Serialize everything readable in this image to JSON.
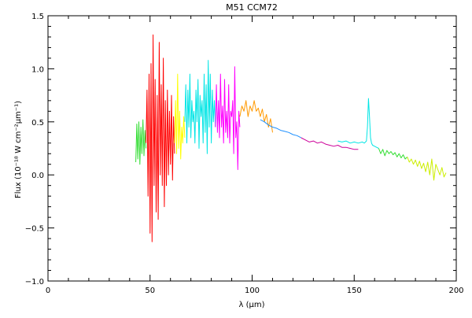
{
  "chart_data": {
    "type": "line",
    "title": "M51 CCM72",
    "xlabel": "λ (μm)",
    "ylabel": "Flux (10⁻¹⁸ W cm⁻²μm⁻¹)",
    "xlim": [
      0,
      200
    ],
    "ylim": [
      -1.0,
      1.5
    ],
    "xticks": [
      0,
      50,
      100,
      150,
      200
    ],
    "yticks": [
      -1.0,
      -0.5,
      0.0,
      0.5,
      1.0,
      1.5
    ],
    "xtick_labels": [
      "0",
      "50",
      "100",
      "150",
      "200"
    ],
    "ytick_labels": [
      "−1.0",
      "−0.5",
      "0.0",
      "0.5",
      "1.0",
      "1.5"
    ],
    "grid": false,
    "series": [
      {
        "color": "#33dd33",
        "x": [
          43,
          43.5,
          44,
          44.5,
          45,
          45.5,
          46,
          46.5,
          47,
          47.5,
          48
        ],
        "y": [
          0.12,
          0.48,
          0.15,
          0.5,
          0.1,
          0.45,
          0.2,
          0.52,
          0.18,
          0.42,
          0.25
        ]
      },
      {
        "color": "#ff0000",
        "x": [
          48,
          48.5,
          49,
          49.5,
          50,
          50.5,
          51,
          51.5,
          52,
          52.5,
          53,
          53.5,
          54,
          54.5,
          55,
          55.5,
          56,
          56.5,
          57,
          57.5,
          58,
          58.5,
          59,
          59.5,
          60,
          60.5,
          61,
          61.5,
          62
        ],
        "y": [
          0.3,
          0.8,
          -0.2,
          0.95,
          -0.55,
          1.05,
          -0.63,
          1.32,
          -0.1,
          0.9,
          -0.35,
          0.75,
          -0.42,
          1.25,
          0.0,
          0.85,
          -0.1,
          1.1,
          -0.3,
          0.7,
          -0.1,
          0.8,
          0.0,
          0.6,
          0.1,
          0.75,
          -0.05,
          0.55,
          0.2
        ]
      },
      {
        "color": "#ffff00",
        "x": [
          62,
          62.5,
          63,
          63.5,
          64,
          64.5,
          65,
          65.5,
          66,
          66.5,
          67
        ],
        "y": [
          0.3,
          0.7,
          0.2,
          0.95,
          0.25,
          0.6,
          0.15,
          0.45,
          0.3,
          0.55,
          0.35
        ]
      },
      {
        "color": "#00e5e5",
        "x": [
          67,
          67.5,
          68,
          68.5,
          69,
          69.5,
          70,
          70.5,
          71,
          71.5,
          72,
          72.5,
          73,
          73.5,
          74,
          74.5,
          75,
          75.5,
          76,
          76.5,
          77,
          77.5,
          78,
          78.5,
          79,
          79.5,
          80,
          80.5,
          81,
          81.5,
          82
        ],
        "y": [
          0.5,
          0.85,
          0.3,
          0.8,
          0.45,
          0.95,
          0.35,
          0.7,
          0.5,
          0.6,
          0.3,
          0.8,
          0.5,
          0.9,
          0.25,
          0.75,
          0.55,
          0.7,
          0.3,
          0.95,
          0.4,
          0.85,
          0.2,
          1.08,
          0.45,
          0.95,
          0.3,
          0.8,
          0.5,
          0.7,
          0.45
        ]
      },
      {
        "color": "#ff00ff",
        "x": [
          82,
          82.5,
          83,
          83.5,
          84,
          84.5,
          85,
          85.5,
          86,
          86.5,
          87,
          87.5,
          88,
          88.5,
          89,
          89.5,
          90,
          90.5,
          91,
          91.5,
          92,
          92.5,
          93,
          93.5,
          94
        ],
        "y": [
          0.45,
          0.85,
          0.4,
          0.7,
          0.35,
          0.95,
          0.45,
          0.65,
          0.3,
          0.9,
          0.4,
          0.6,
          0.35,
          0.85,
          0.3,
          0.6,
          0.55,
          0.7,
          0.2,
          1.02,
          0.35,
          0.5,
          0.05,
          0.6,
          0.45
        ]
      },
      {
        "color": "#ff9900",
        "x": [
          94,
          95,
          96,
          97,
          98,
          99,
          100,
          101,
          102,
          103,
          104,
          105,
          106,
          107,
          108,
          109,
          110
        ],
        "y": [
          0.55,
          0.65,
          0.6,
          0.7,
          0.55,
          0.65,
          0.6,
          0.7,
          0.6,
          0.63,
          0.55,
          0.62,
          0.5,
          0.57,
          0.45,
          0.53,
          0.4
        ]
      },
      {
        "color": "#1e90ff",
        "x": [
          104,
          106,
          108,
          110,
          112,
          114,
          116,
          118,
          120,
          122,
          124
        ],
        "y": [
          0.52,
          0.5,
          0.47,
          0.45,
          0.44,
          0.42,
          0.41,
          0.4,
          0.38,
          0.37,
          0.35
        ]
      },
      {
        "color": "#cc0099",
        "x": [
          124,
          126,
          128,
          130,
          132,
          134,
          136,
          138,
          140,
          142,
          144,
          146,
          148,
          150,
          152
        ],
        "y": [
          0.35,
          0.33,
          0.31,
          0.32,
          0.3,
          0.31,
          0.29,
          0.28,
          0.27,
          0.28,
          0.26,
          0.26,
          0.25,
          0.24,
          0.24
        ]
      },
      {
        "color": "#00e5e5",
        "x": [
          142,
          144,
          146,
          148,
          150,
          152,
          154,
          155,
          156,
          156.5,
          157,
          157.5,
          158,
          158.5,
          159,
          160,
          161,
          162
        ],
        "y": [
          0.32,
          0.31,
          0.32,
          0.3,
          0.31,
          0.3,
          0.31,
          0.3,
          0.32,
          0.45,
          0.72,
          0.55,
          0.35,
          0.3,
          0.28,
          0.27,
          0.26,
          0.25
        ]
      },
      {
        "color": "#33dd33",
        "x": [
          162,
          163,
          164,
          165,
          166,
          167,
          168,
          169,
          170,
          171,
          172,
          173,
          174,
          175,
          176
        ],
        "y": [
          0.25,
          0.2,
          0.24,
          0.18,
          0.23,
          0.2,
          0.22,
          0.19,
          0.21,
          0.17,
          0.2,
          0.16,
          0.19,
          0.15,
          0.17
        ]
      },
      {
        "color": "#ccee00",
        "x": [
          176,
          177,
          178,
          179,
          180,
          181,
          182,
          183,
          184,
          185,
          186,
          187,
          188,
          189,
          190,
          191,
          192,
          193,
          194,
          195
        ],
        "y": [
          0.17,
          0.12,
          0.15,
          0.1,
          0.14,
          0.08,
          0.13,
          0.06,
          0.11,
          0.03,
          0.12,
          0.0,
          0.15,
          -0.05,
          0.1,
          0.05,
          0.0,
          0.07,
          -0.02,
          0.02
        ]
      }
    ]
  }
}
